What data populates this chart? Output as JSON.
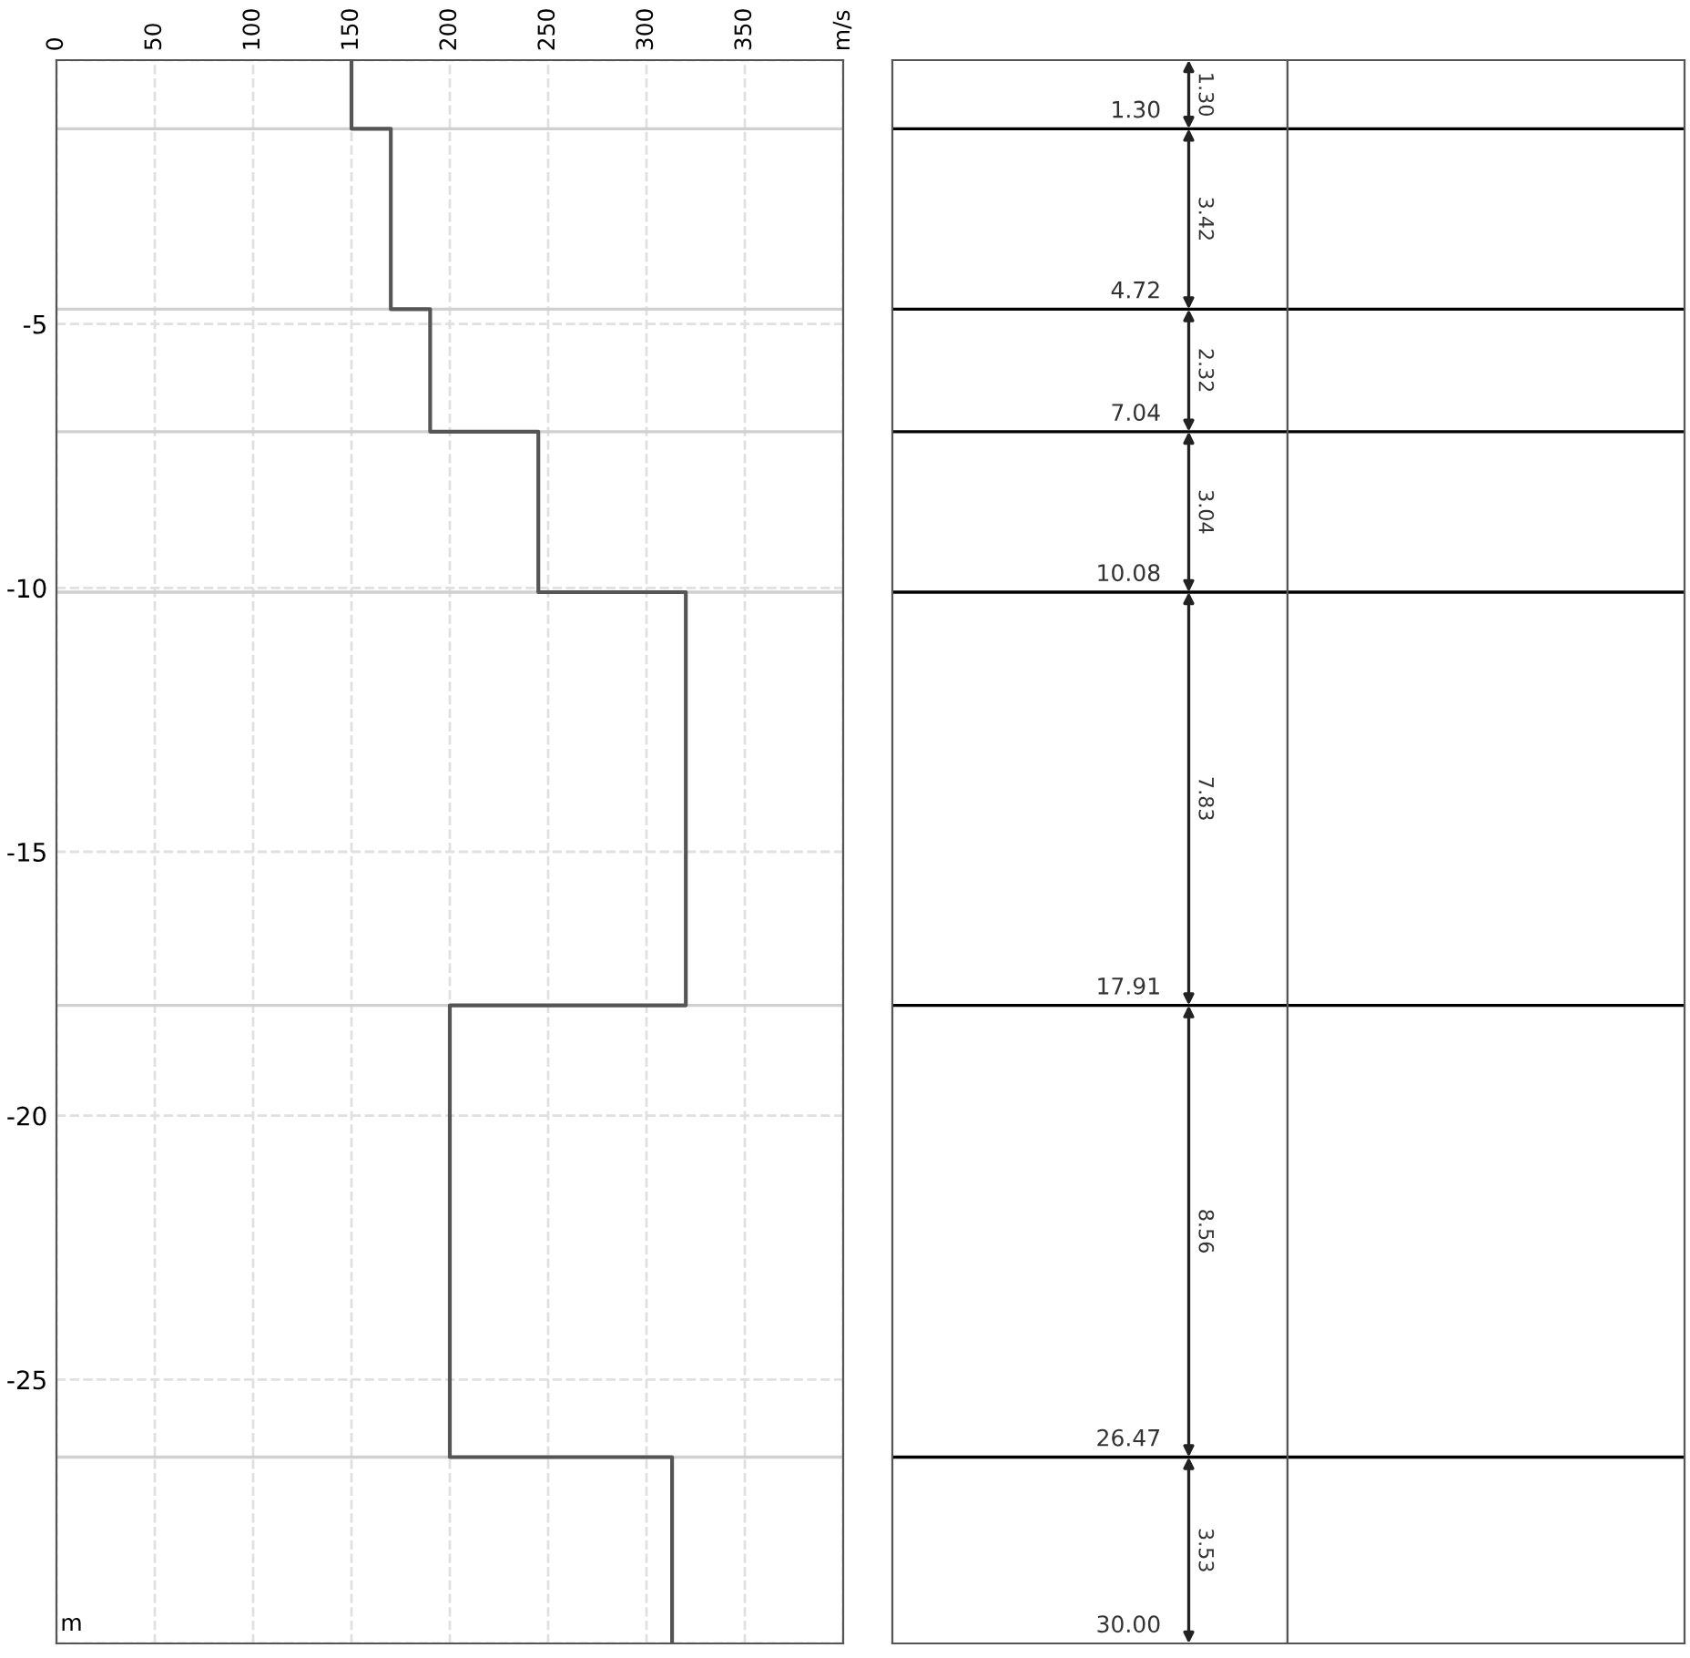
{
  "chart_data": [
    {
      "type": "step",
      "orientation": "horizontal",
      "ylabel": "m",
      "x": [
        0,
        -1.3,
        -4.72,
        -7.04,
        -10.08,
        -17.91,
        -26.47,
        -30
      ],
      "series": [
        {
          "color": "#555555",
          "values": [
            150,
            170,
            190,
            245,
            320,
            200,
            313,
            313
          ]
        }
      ],
      "xlim": [
        0,
        400
      ],
      "xticks": [
        0,
        50,
        100,
        150,
        200,
        250,
        300,
        350,
        {
          "value": 400,
          "label": "m/s"
        }
      ],
      "ylim": [
        -30,
        0
      ],
      "yticks": [
        {
          "value": 0,
          "label": null
        },
        -5,
        -10,
        -15,
        -20,
        -25,
        {
          "value": -30,
          "label": null
        }
      ],
      "grid": true,
      "ref_lines": [
        {
          "axis": "y",
          "value": -1.3,
          "color": "#d0d0d0"
        },
        {
          "axis": "y",
          "value": -4.72,
          "color": "#d0d0d0"
        },
        {
          "axis": "y",
          "value": -7.04,
          "color": "#d0d0d0"
        },
        {
          "axis": "y",
          "value": -10.08,
          "color": "#d0d0d0"
        },
        {
          "axis": "y",
          "value": -17.91,
          "color": "#d0d0d0"
        },
        {
          "axis": "y",
          "value": -26.47,
          "color": "#d0d0d0"
        }
      ]
    },
    {
      "type": "other",
      "annotations": [
        "1.30",
        "1.30",
        "3.42",
        "4.72",
        "2.32",
        "7.04",
        "3.04",
        "10.08",
        "7.83",
        "17.91",
        "8.56",
        "26.47",
        "3.53",
        "30.00"
      ]
    }
  ]
}
